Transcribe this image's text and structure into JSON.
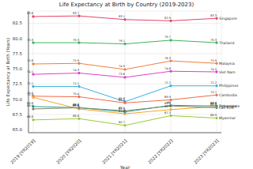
{
  "chart_data": {
    "type": "line",
    "title": "Life Expectancy at Birth by Country (2019-2023)",
    "x_label": "Year",
    "y_label": "Life Expectancy at Birth (Years)",
    "categories": [
      "2019 [YR2019]",
      "2020 [YR2020]",
      "2021 [YR2021]",
      "2022 [YR2022]",
      "2023 [YR2023]"
    ],
    "series": [
      {
        "name": "Singapore",
        "color": "#e8436b",
        "values": [
          83.6,
          83.7,
          83.1,
          82.9,
          83.3
        ]
      },
      {
        "name": "Thailand",
        "color": "#3cb45c",
        "values": [
          79.3,
          79.3,
          79.1,
          79.7,
          79.3
        ]
      },
      {
        "name": "Malaysia",
        "color": "#f0803c",
        "values": [
          75.8,
          75.9,
          74.9,
          76.3,
          75.9
        ]
      },
      {
        "name": "Viet Nam",
        "color": "#e040c8",
        "values": [
          74.1,
          74.3,
          73.6,
          74.6,
          74.5
        ]
      },
      {
        "name": "Philippines",
        "color": "#3ab0e0",
        "values": [
          72.1,
          72.1,
          69.6,
          72.2,
          72.2
        ]
      },
      {
        "name": "Cambodia",
        "color": "#f06a4a",
        "values": [
          70.5,
          70.4,
          69.4,
          69.9,
          70.7
        ]
      },
      {
        "name": "Indonesia",
        "color": "#f5a623",
        "values": [
          70.3,
          68.4,
          67.6,
          68.3,
          68.8
        ]
      },
      {
        "name": "Timor-Leste",
        "color": "#2aa198",
        "values": [
          68.8,
          68.6,
          67.9,
          69.0,
          68.9
        ]
      },
      {
        "name": "Lao PDR",
        "color": "#7a8a6a",
        "values": [
          68.4,
          68.6,
          68.1,
          68.9,
          68.6
        ]
      },
      {
        "name": "Myanmar",
        "color": "#9acd32",
        "values": [
          66.6,
          66.8,
          65.7,
          67.3,
          66.9
        ]
      }
    ],
    "ylim": [
      64.5,
      84.5
    ],
    "yticks": [
      {
        "value": 65,
        "label": "65.0"
      },
      {
        "value": 67.5,
        "label": "67.5"
      },
      {
        "value": 70,
        "label": "70.0"
      },
      {
        "value": 72.5,
        "label": "72.5"
      },
      {
        "value": 75,
        "label": "75.0"
      },
      {
        "value": 77.5,
        "label": "77.5"
      },
      {
        "value": 80,
        "label": "80.0"
      },
      {
        "value": 82.5,
        "label": "82.5"
      }
    ],
    "grid": true,
    "data_labels": true,
    "marker": "o"
  }
}
